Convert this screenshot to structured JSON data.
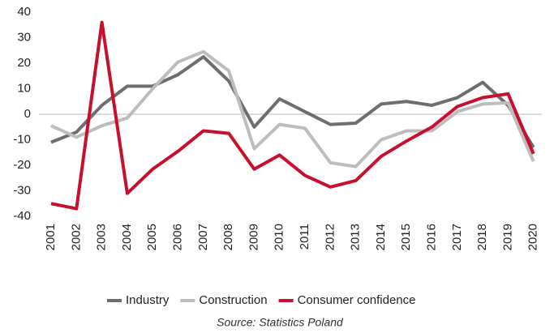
{
  "chart_data": {
    "type": "line",
    "categories": [
      "2001",
      "2002",
      "2003",
      "2004",
      "2005",
      "2006",
      "2007",
      "2008",
      "2009",
      "2010",
      "2011",
      "2012",
      "2013",
      "2014",
      "2015",
      "2016",
      "2017",
      "2018",
      "2019",
      "2020"
    ],
    "series": [
      {
        "name": "Industry",
        "color": "#6d6e71",
        "values": [
          -11,
          -7,
          3.5,
          11,
          11,
          15.5,
          22.5,
          13,
          -5,
          6,
          1,
          -4,
          -3.5,
          4,
          5,
          3.5,
          6.5,
          12.5,
          3.5,
          -13
        ]
      },
      {
        "name": "Construction",
        "color": "#bdbdbd",
        "values": [
          -4.5,
          -9,
          -4.5,
          -1.5,
          10,
          20.5,
          24.5,
          17,
          -13.5,
          -4,
          -5.5,
          -19,
          -20.5,
          -10,
          -6.5,
          -6.5,
          1,
          4,
          4.5,
          -18.5
        ]
      },
      {
        "name": "Consumer confidence",
        "color": "#c8102e",
        "values": [
          -35,
          -37,
          36,
          -31,
          -21.5,
          -14.5,
          -6.5,
          -7.5,
          -21.5,
          -16,
          -24,
          -28.5,
          -26,
          -16.5,
          -10.5,
          -5,
          3,
          6.5,
          8,
          -15.5
        ]
      }
    ],
    "ylim": [
      -40,
      40
    ],
    "yticks": [
      -40,
      -30,
      -20,
      -10,
      0,
      10,
      20,
      30,
      40
    ],
    "source": "Source: Statistics Poland"
  }
}
